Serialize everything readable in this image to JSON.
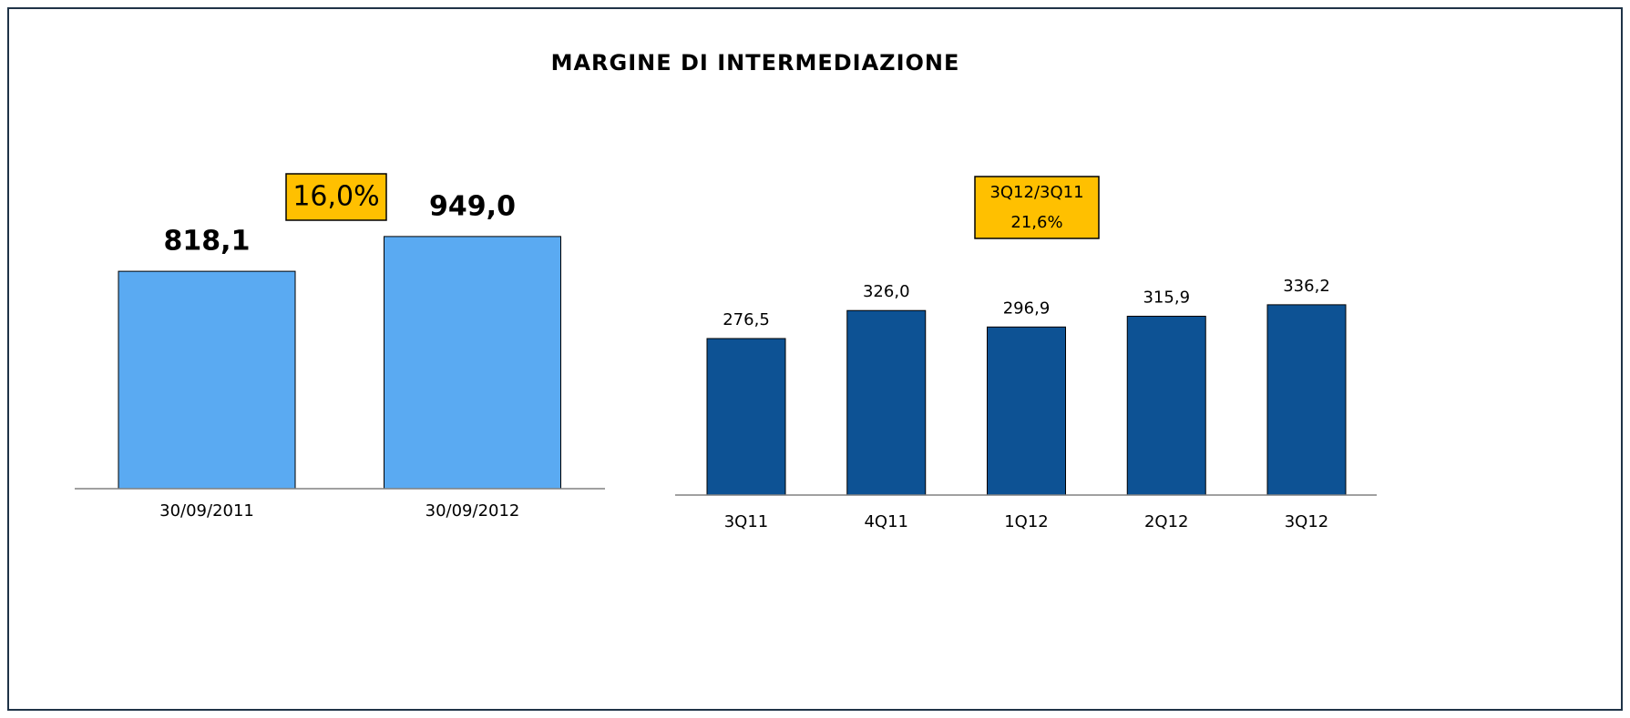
{
  "title": "MARGINE DI INTERMEDIAZIONE",
  "chart_data": [
    {
      "type": "bar",
      "categories": [
        "30/09/2011",
        "30/09/2012"
      ],
      "values": [
        818.1,
        949.0
      ],
      "value_labels": [
        "818,1",
        "949,0"
      ],
      "color": "#5aaaf2",
      "annotations": [
        "16,0%"
      ]
    },
    {
      "type": "bar",
      "categories": [
        "3Q11",
        "4Q11",
        "1Q12",
        "2Q12",
        "3Q12"
      ],
      "values": [
        276.5,
        326.0,
        296.9,
        315.9,
        336.2
      ],
      "value_labels": [
        "276,5",
        "326,0",
        "296,9",
        "315,9",
        "336,2"
      ],
      "color": "#0d5294",
      "annotations": [
        "3Q12/3Q11",
        "21,6%"
      ]
    }
  ]
}
